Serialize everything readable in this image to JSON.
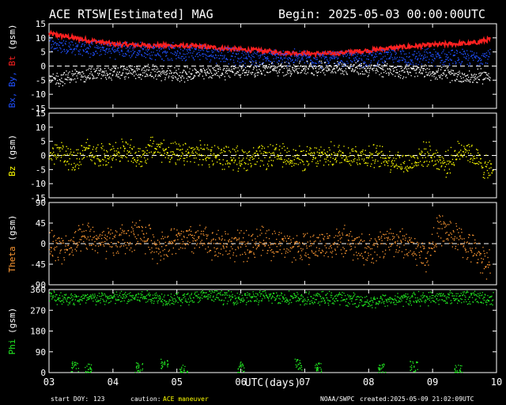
{
  "header": {
    "title": "ACE RTSW[Estimated] MAG",
    "begin": "Begin: 2025-05-03 00:00:00UTC"
  },
  "footer": {
    "start_doy_label": "start DOY:",
    "start_doy": "123",
    "caution_label": "caution:",
    "caution_value": "ACE maneuver",
    "source": "NOAA/SWPC",
    "created": "created:2025-05-09 21:02:09UTC"
  },
  "colors": {
    "bx": "#ffffff",
    "by": "#2050ff",
    "bt": "#ff2020",
    "bz": "#ffff00",
    "theta": "#ff9933",
    "phi": "#22ee22",
    "caution": "#ffff00",
    "dashed": "#ffffff",
    "axis": "#ffffff"
  },
  "chart_data": {
    "type": "scatter",
    "xlabel": "UTC(days)",
    "x_ticks": [
      "03",
      "04",
      "05",
      "06",
      "07",
      "08",
      "09",
      "10"
    ],
    "xlim": [
      0,
      7
    ],
    "panels": [
      {
        "id": "b",
        "ylabel_parts": [
          "Bx,",
          " By,",
          " Bt",
          " (gsm)"
        ],
        "ylabel_colors": [
          "#2050ff",
          "#2050ff",
          "#ff2020",
          "#ffffff"
        ],
        "ylim": [
          -15,
          15
        ],
        "yticks": [
          15,
          10,
          5,
          0,
          -5,
          -10,
          -15
        ],
        "dashed_at": 0,
        "series": [
          {
            "name": "Bt",
            "color_key": "bt",
            "mode": "line",
            "x": [
              0,
              0.25,
              0.5,
              0.8,
              1.0,
              1.3,
              1.6,
              2.0,
              2.3,
              2.6,
              3.0,
              3.3,
              3.6,
              4.0,
              4.3,
              4.6,
              5.0,
              5.3,
              5.6,
              6.0,
              6.3,
              6.6,
              6.9
            ],
            "y": [
              11.5,
              10.5,
              9.5,
              8.5,
              7.8,
              7.5,
              7.3,
              7.2,
              7.0,
              6.5,
              5.8,
              5.5,
              4.8,
              4.5,
              4.3,
              4.8,
              5.5,
              6.3,
              6.8,
              7.5,
              7.8,
              8.0,
              9.5
            ]
          },
          {
            "name": "By",
            "color_key": "by",
            "mode": "band",
            "x": [
              0,
              0.25,
              0.5,
              0.8,
              1.0,
              1.3,
              1.6,
              2.0,
              2.3,
              2.6,
              3.0,
              3.3,
              3.6,
              4.0,
              4.3,
              4.6,
              5.0,
              5.3,
              5.6,
              6.0,
              6.3,
              6.6,
              6.9
            ],
            "y": [
              8,
              7,
              6.5,
              6,
              6,
              5.5,
              5.5,
              5,
              5,
              4.5,
              3.5,
              3,
              3,
              3,
              2.5,
              2.5,
              3,
              3.5,
              3,
              3.5,
              3,
              3,
              4
            ],
            "spread": 3.5
          },
          {
            "name": "Bx",
            "color_key": "bx",
            "mode": "band",
            "x": [
              0,
              0.25,
              0.5,
              0.8,
              1.0,
              1.3,
              1.6,
              2.0,
              2.3,
              2.6,
              3.0,
              3.3,
              3.6,
              4.0,
              4.3,
              4.6,
              5.0,
              5.3,
              5.6,
              6.0,
              6.3,
              6.6,
              6.9
            ],
            "y": [
              -5,
              -4,
              -3,
              -2.5,
              -2.5,
              -2,
              -2,
              -3,
              -2.5,
              -2,
              -1.5,
              -1,
              -1,
              -0.5,
              -0.5,
              -0.5,
              -1,
              -1,
              -1.5,
              -2,
              -3,
              -4,
              -3
            ],
            "spread": 3
          }
        ]
      },
      {
        "id": "bz",
        "ylabel_parts": [
          "Bz",
          " (gsm)"
        ],
        "ylabel_colors": [
          "#ffff00",
          "#ffffff"
        ],
        "ylim": [
          -15,
          15
        ],
        "yticks": [
          15,
          10,
          5,
          0,
          -5,
          -10,
          -15
        ],
        "dashed_at": 0,
        "series": [
          {
            "name": "Bz",
            "color_key": "bz",
            "mode": "band",
            "x": [
              0,
              0.2,
              0.4,
              0.6,
              0.8,
              1.0,
              1.2,
              1.4,
              1.6,
              1.8,
              2.0,
              2.3,
              2.6,
              3.0,
              3.3,
              3.6,
              4.0,
              4.3,
              4.6,
              5.0,
              5.3,
              5.6,
              5.9,
              6.2,
              6.5,
              6.8,
              6.95
            ],
            "y": [
              0,
              1,
              -2,
              2,
              0,
              1,
              2,
              -1,
              3,
              2,
              0,
              1,
              0,
              -1,
              -0.5,
              0,
              -1,
              0,
              0.5,
              0,
              -1,
              -3,
              1,
              -3,
              3,
              -4,
              -6
            ],
            "spread": 5
          }
        ]
      },
      {
        "id": "theta",
        "ylabel_parts": [
          "Theta",
          " (gsm)"
        ],
        "ylabel_colors": [
          "#ff9933",
          "#ffffff"
        ],
        "ylim": [
          -90,
          90
        ],
        "yticks": [
          90,
          45,
          0,
          -45,
          -90
        ],
        "dashed_at": 0,
        "series": [
          {
            "name": "Theta",
            "color_key": "theta",
            "mode": "band",
            "x": [
              0,
              0.3,
              0.6,
              0.9,
              1.2,
              1.4,
              1.7,
              2.0,
              2.3,
              2.6,
              3.0,
              3.3,
              3.6,
              4.0,
              4.3,
              4.6,
              5.0,
              5.3,
              5.6,
              5.9,
              6.1,
              6.3,
              6.6,
              6.9
            ],
            "y": [
              0,
              -10,
              15,
              0,
              10,
              25,
              -5,
              5,
              10,
              0,
              -5,
              5,
              0,
              -10,
              0,
              5,
              -15,
              10,
              0,
              -30,
              35,
              20,
              -10,
              -45
            ],
            "spread": 40
          }
        ]
      },
      {
        "id": "phi",
        "ylabel_parts": [
          "Phi",
          " (gsm)"
        ],
        "ylabel_colors": [
          "#22ee22",
          "#ffffff"
        ],
        "ylim": [
          0,
          360
        ],
        "yticks": [
          360,
          270,
          180,
          90,
          0
        ],
        "series": [
          {
            "name": "Phi",
            "color_key": "phi",
            "mode": "band",
            "x": [
              0,
              0.5,
              1.0,
              1.5,
              2.0,
              2.5,
              3.0,
              3.5,
              4.0,
              4.5,
              5.0,
              5.5,
              6.0,
              6.5,
              6.95
            ],
            "y": [
              330,
              320,
              325,
              330,
              320,
              335,
              325,
              330,
              320,
              325,
              310,
              320,
              325,
              330,
              320
            ],
            "spread": 35
          },
          {
            "name": "Phi-low",
            "color_key": "phi",
            "mode": "sparse",
            "x": [
              0.4,
              0.6,
              1.4,
              1.8,
              2.1,
              3.0,
              3.9,
              4.2,
              5.2,
              5.7,
              6.4
            ],
            "y": [
              30,
              15,
              20,
              40,
              10,
              25,
              35,
              20,
              15,
              30,
              10
            ],
            "spread": 25
          }
        ]
      }
    ]
  }
}
